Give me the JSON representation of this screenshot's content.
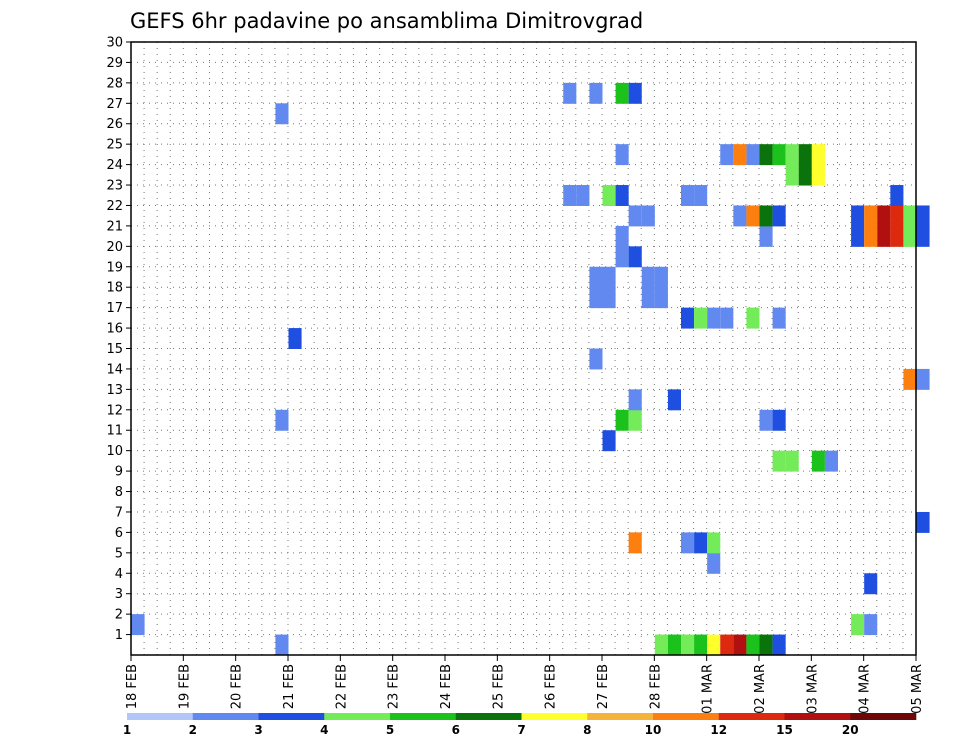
{
  "chart_data": {
    "type": "heatmap",
    "title": "GEFS 6hr padavine po ansamblima Dimitrovgrad",
    "xlabel": "",
    "ylabel": "",
    "x_tick_labels": [
      "18 FEB",
      "19 FEB",
      "20 FEB",
      "21 FEB",
      "22 FEB",
      "23 FEB",
      "24 FEB",
      "25 FEB",
      "26 FEB",
      "27 FEB",
      "28 FEB",
      "01 MAR",
      "02 MAR",
      "03 MAR",
      "04 MAR",
      "05 MAR"
    ],
    "x_range_steps": [
      0,
      60
    ],
    "y_tick_labels": [
      "1",
      "2",
      "3",
      "4",
      "5",
      "6",
      "7",
      "8",
      "9",
      "10",
      "11",
      "12",
      "13",
      "14",
      "15",
      "16",
      "17",
      "18",
      "19",
      "20",
      "21",
      "22",
      "23",
      "24",
      "25",
      "26",
      "27",
      "28",
      "29",
      "30"
    ],
    "y_range": [
      0,
      30
    ],
    "grid": true,
    "legend": {
      "placement": "bottom",
      "bounds": [
        "1",
        "2",
        "3",
        "4",
        "5",
        "6",
        "7",
        "8",
        "10",
        "12",
        "15",
        "20"
      ],
      "colors": [
        "#b3c6fa",
        "#6289f0",
        "#1f4fe0",
        "#74ec5a",
        "#1cc21c",
        "#0b730b",
        "#ffff2b",
        "#f5b33a",
        "#fc7f0f",
        "#dd2a0e",
        "#b01010",
        "#6e0707"
      ]
    },
    "cells": [
      [
        0,
        1,
        1
      ],
      [
        11,
        0,
        1
      ],
      [
        40,
        0,
        3
      ],
      [
        41,
        0,
        4
      ],
      [
        42,
        0,
        3
      ],
      [
        43,
        0,
        4
      ],
      [
        44,
        0,
        6
      ],
      [
        45,
        0,
        9
      ],
      [
        46,
        0,
        10
      ],
      [
        47,
        0,
        4
      ],
      [
        48,
        0,
        5
      ],
      [
        49,
        0,
        2
      ],
      [
        55,
        1,
        3
      ],
      [
        56,
        1,
        1
      ],
      [
        56,
        3,
        2
      ],
      [
        44,
        4,
        1
      ],
      [
        42,
        5,
        1
      ],
      [
        43,
        5,
        2
      ],
      [
        44,
        5,
        3
      ],
      [
        38,
        5,
        8
      ],
      [
        60,
        6,
        2
      ],
      [
        50,
        9,
        3
      ],
      [
        49,
        9,
        3
      ],
      [
        52,
        9,
        4
      ],
      [
        53,
        9,
        1
      ],
      [
        36,
        10,
        2
      ],
      [
        37,
        11,
        4
      ],
      [
        38,
        11,
        3
      ],
      [
        11,
        11,
        1
      ],
      [
        48,
        11,
        1
      ],
      [
        49,
        11,
        2
      ],
      [
        38,
        12,
        1
      ],
      [
        41,
        12,
        2
      ],
      [
        59,
        13,
        8
      ],
      [
        60,
        13,
        1
      ],
      [
        35,
        14,
        1
      ],
      [
        12,
        15,
        2
      ],
      [
        42,
        16,
        2
      ],
      [
        43,
        16,
        3
      ],
      [
        44,
        16,
        1
      ],
      [
        45,
        16,
        1
      ],
      [
        47,
        16,
        3
      ],
      [
        49,
        16,
        1
      ],
      [
        35,
        17,
        1
      ],
      [
        36,
        17,
        1
      ],
      [
        39,
        17,
        1
      ],
      [
        40,
        17,
        1
      ],
      [
        35,
        18,
        1
      ],
      [
        36,
        18,
        1
      ],
      [
        39,
        18,
        1
      ],
      [
        40,
        18,
        1
      ],
      [
        37,
        19,
        1
      ],
      [
        38,
        19,
        2
      ],
      [
        37,
        20,
        1
      ],
      [
        48,
        20,
        1
      ],
      [
        55,
        20,
        2
      ],
      [
        56,
        20,
        8
      ],
      [
        57,
        20,
        10
      ],
      [
        58,
        20,
        9
      ],
      [
        59,
        20,
        3
      ],
      [
        60,
        20,
        2
      ],
      [
        55,
        21,
        2
      ],
      [
        56,
        21,
        8
      ],
      [
        57,
        21,
        10
      ],
      [
        58,
        21,
        9
      ],
      [
        59,
        21,
        3
      ],
      [
        60,
        21,
        2
      ],
      [
        38,
        21,
        1
      ],
      [
        39,
        21,
        1
      ],
      [
        46,
        21,
        1
      ],
      [
        47,
        21,
        8
      ],
      [
        48,
        21,
        5
      ],
      [
        49,
        21,
        2
      ],
      [
        33,
        22,
        1
      ],
      [
        34,
        22,
        1
      ],
      [
        36,
        22,
        3
      ],
      [
        37,
        22,
        2
      ],
      [
        42,
        22,
        1
      ],
      [
        43,
        22,
        1
      ],
      [
        58,
        22,
        2
      ],
      [
        50,
        23,
        3
      ],
      [
        51,
        23,
        5
      ],
      [
        52,
        23,
        6
      ],
      [
        48,
        24,
        5
      ],
      [
        49,
        24,
        4
      ],
      [
        50,
        24,
        3
      ],
      [
        51,
        24,
        5
      ],
      [
        52,
        24,
        6
      ],
      [
        37,
        24,
        1
      ],
      [
        47,
        24,
        1
      ],
      [
        45,
        24,
        1
      ],
      [
        46,
        24,
        8
      ],
      [
        11,
        26,
        1
      ],
      [
        33,
        27,
        1
      ],
      [
        35,
        27,
        1
      ],
      [
        37,
        27,
        4
      ],
      [
        38,
        27,
        2
      ]
    ]
  }
}
